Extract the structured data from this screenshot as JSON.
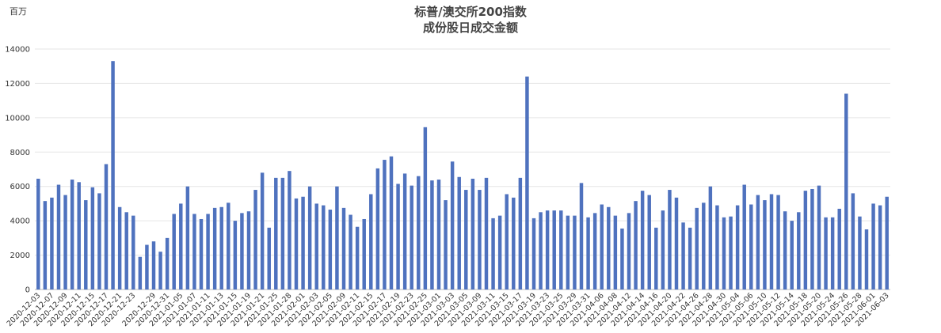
{
  "chart_data": {
    "type": "bar",
    "title": "标普/澳交所200指数",
    "subtitle": "成份股日成交金额",
    "unit_label": "百万",
    "ylim": [
      0,
      14000
    ],
    "yticks": [
      0,
      2000,
      4000,
      6000,
      8000,
      10000,
      12000,
      14000
    ],
    "grid": true,
    "bar_color": "#4f72be",
    "categories": [
      "2020-12-03",
      "2020-12-04",
      "2020-12-07",
      "2020-12-08",
      "2020-12-09",
      "2020-12-10",
      "2020-12-11",
      "2020-12-14",
      "2020-12-15",
      "2020-12-16",
      "2020-12-17",
      "2020-12-18",
      "2020-12-21",
      "2020-12-22",
      "2020-12-23",
      "2020-12-24",
      "2020-12-28",
      "2020-12-29",
      "2020-12-30",
      "2020-12-31",
      "2021-01-04",
      "2021-01-05",
      "2021-01-06",
      "2021-01-07",
      "2021-01-08",
      "2021-01-11",
      "2021-01-12",
      "2021-01-13",
      "2021-01-14",
      "2021-01-15",
      "2021-01-18",
      "2021-01-19",
      "2021-01-20",
      "2021-01-21",
      "2021-01-22",
      "2021-01-25",
      "2021-01-27",
      "2021-01-28",
      "2021-01-29",
      "2021-02-01",
      "2021-02-02",
      "2021-02-03",
      "2021-02-04",
      "2021-02-05",
      "2021-02-08",
      "2021-02-09",
      "2021-02-10",
      "2021-02-11",
      "2021-02-12",
      "2021-02-15",
      "2021-02-16",
      "2021-02-17",
      "2021-02-18",
      "2021-02-19",
      "2021-02-22",
      "2021-02-23",
      "2021-02-24",
      "2021-02-25",
      "2021-02-26",
      "2021-03-01",
      "2021-03-02",
      "2021-03-03",
      "2021-03-04",
      "2021-03-05",
      "2021-03-08",
      "2021-03-09",
      "2021-03-10",
      "2021-03-11",
      "2021-03-12",
      "2021-03-15",
      "2021-03-16",
      "2021-03-17",
      "2021-03-18",
      "2021-03-19",
      "2021-03-22",
      "2021-03-23",
      "2021-03-24",
      "2021-03-25",
      "2021-03-26",
      "2021-03-29",
      "2021-03-30",
      "2021-03-31",
      "2021-04-01",
      "2021-04-06",
      "2021-04-07",
      "2021-04-08",
      "2021-04-09",
      "2021-04-12",
      "2021-04-13",
      "2021-04-14",
      "2021-04-15",
      "2021-04-16",
      "2021-04-19",
      "2021-04-20",
      "2021-04-21",
      "2021-04-22",
      "2021-04-23",
      "2021-04-26",
      "2021-04-27",
      "2021-04-28",
      "2021-04-29",
      "2021-04-30",
      "2021-05-03",
      "2021-05-04",
      "2021-05-05",
      "2021-05-06",
      "2021-05-07",
      "2021-05-10",
      "2021-05-11",
      "2021-05-12",
      "2021-05-13",
      "2021-05-14",
      "2021-05-17",
      "2021-05-18",
      "2021-05-19",
      "2021-05-20",
      "2021-05-21",
      "2021-05-24",
      "2021-05-25",
      "2021-05-26",
      "2021-05-27",
      "2021-05-28",
      "2021-05-31",
      "2021-06-01",
      "2021-06-02",
      "2021-06-03"
    ],
    "values": [
      6450,
      5150,
      5350,
      6100,
      5500,
      6400,
      6250,
      5200,
      5950,
      5600,
      7300,
      13300,
      4800,
      4500,
      4300,
      1900,
      2600,
      2800,
      2200,
      3000,
      4400,
      5000,
      6000,
      4400,
      4100,
      4400,
      4750,
      4800,
      5050,
      4000,
      4450,
      4550,
      5800,
      6800,
      3600,
      6500,
      6500,
      6900,
      5300,
      5400,
      6000,
      5000,
      4900,
      4650,
      6000,
      4750,
      4350,
      3650,
      4100,
      5550,
      7050,
      7550,
      7750,
      6150,
      6750,
      6050,
      6600,
      9450,
      6350,
      6400,
      5200,
      7450,
      6550,
      5800,
      6450,
      5800,
      6500,
      4150,
      4300,
      5550,
      5350,
      6500,
      12400,
      4150,
      4500,
      4600,
      4600,
      4600,
      4300,
      4300,
      6200,
      4200,
      4450,
      4950,
      4800,
      4300,
      3550,
      4450,
      5150,
      5750,
      5500,
      3600,
      4600,
      5800,
      5350,
      3900,
      3600,
      4750,
      5050,
      6000,
      4900,
      4200,
      4250,
      4900,
      6100,
      4950,
      5500,
      5200,
      5550,
      5500,
      4550,
      4000,
      4500,
      5750,
      5850,
      6050,
      4200,
      4200,
      4700,
      11400,
      5600,
      4250,
      3500,
      5000,
      4900,
      5400
    ],
    "xtick_labels": [
      "2020-12-03",
      "2020-12-07",
      "2020-12-09",
      "2020-12-11",
      "2020-12-15",
      "2020-12-17",
      "2020-12-21",
      "2020-12-23",
      "2020-12-29",
      "2020-12-31",
      "2021-01-05",
      "2021-01-07",
      "2021-01-11",
      "2021-01-13",
      "2021-01-15",
      "2021-01-19",
      "2021-01-21",
      "2021-01-25",
      "2021-01-28",
      "2021-02-01",
      "2021-02-03",
      "2021-02-05",
      "2021-02-09",
      "2021-02-11",
      "2021-02-15",
      "2021-02-17",
      "2021-02-19",
      "2021-02-23",
      "2021-02-25",
      "2021-03-01",
      "2021-03-03",
      "2021-03-05",
      "2021-03-09",
      "2021-03-11",
      "2021-03-15",
      "2021-03-17",
      "2021-03-19",
      "2021-03-23",
      "2021-03-25",
      "2021-03-29",
      "2021-03-31",
      "2021-04-06",
      "2021-04-08",
      "2021-04-12",
      "2021-04-14",
      "2021-04-16",
      "2021-04-20",
      "2021-04-22",
      "2021-04-26",
      "2021-04-28",
      "2021-04-30",
      "2021-05-04",
      "2021-05-06",
      "2021-05-10",
      "2021-05-12",
      "2021-05-14",
      "2021-05-18",
      "2021-05-20",
      "2021-05-24",
      "2021-05-26",
      "2021-05-28",
      "2021-06-01",
      "2021-06-03"
    ]
  }
}
